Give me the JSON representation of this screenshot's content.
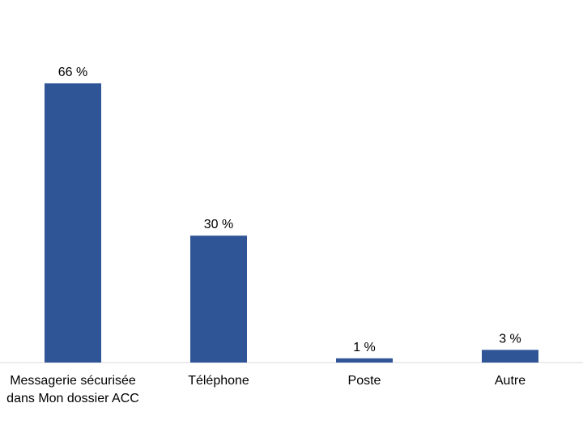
{
  "chart_data": {
    "type": "bar",
    "categories": [
      [
        "Messagerie sécurisée",
        "dans Mon dossier ACC"
      ],
      [
        "Téléphone"
      ],
      [
        "Poste"
      ],
      [
        "Autre"
      ]
    ],
    "values": [
      66,
      30,
      1,
      3
    ],
    "data_labels": [
      "66 %",
      "30 %",
      "1 %",
      "3 %"
    ],
    "title": "",
    "xlabel": "",
    "ylabel": "",
    "ylim": [
      0,
      66
    ],
    "grid": false,
    "legend": "none",
    "bar_color": "#2f5597",
    "axis_color": "#d9d9d9"
  }
}
